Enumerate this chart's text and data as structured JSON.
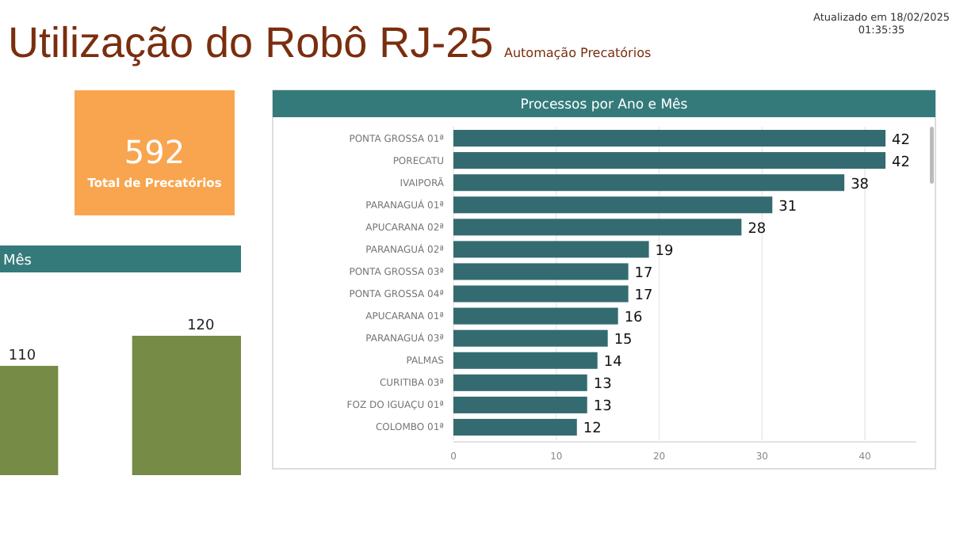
{
  "chart_data": [
    {
      "type": "other",
      "title": "Utilização do Robô RJ-25",
      "subtitle": "Automação Precatórios",
      "annotations": [
        "Atualizado em 18/02/2025\n01:35:35"
      ]
    },
    {
      "type": "other",
      "title": "Total de Precatórios",
      "annotations": [
        "592"
      ],
      "color": "#f9a54f"
    },
    {
      "type": "bar",
      "title": "Mês",
      "categories": [
        null,
        null
      ],
      "values": [
        110,
        120
      ],
      "color": "#768b45",
      "data_labels": true
    },
    {
      "type": "bar",
      "orientation": "horizontal",
      "title": "Processos por Ano e Mês",
      "categories": [
        "PONTA GROSSA 01ª",
        "PORECATU",
        "IVAIPORÃ",
        "PARANAGUÁ 01ª",
        "APUCARANA 02ª",
        "PARANAGUÁ 02ª",
        "PONTA GROSSA 03ª",
        "PONTA GROSSA 04ª",
        "APUCARANA 01ª",
        "PARANAGUÁ 03ª",
        "PALMAS",
        "CURITIBA 03ª",
        "FOZ DO IGUAÇU 01ª",
        "COLOMBO 01ª"
      ],
      "values": [
        42,
        42,
        38,
        31,
        28,
        19,
        17,
        17,
        16,
        15,
        14,
        13,
        13,
        12
      ],
      "color": "#336b70",
      "data_labels": true,
      "xlim": [
        0,
        45
      ],
      "xticks": [
        0,
        10,
        20,
        30,
        40
      ],
      "grid": "x"
    }
  ]
}
